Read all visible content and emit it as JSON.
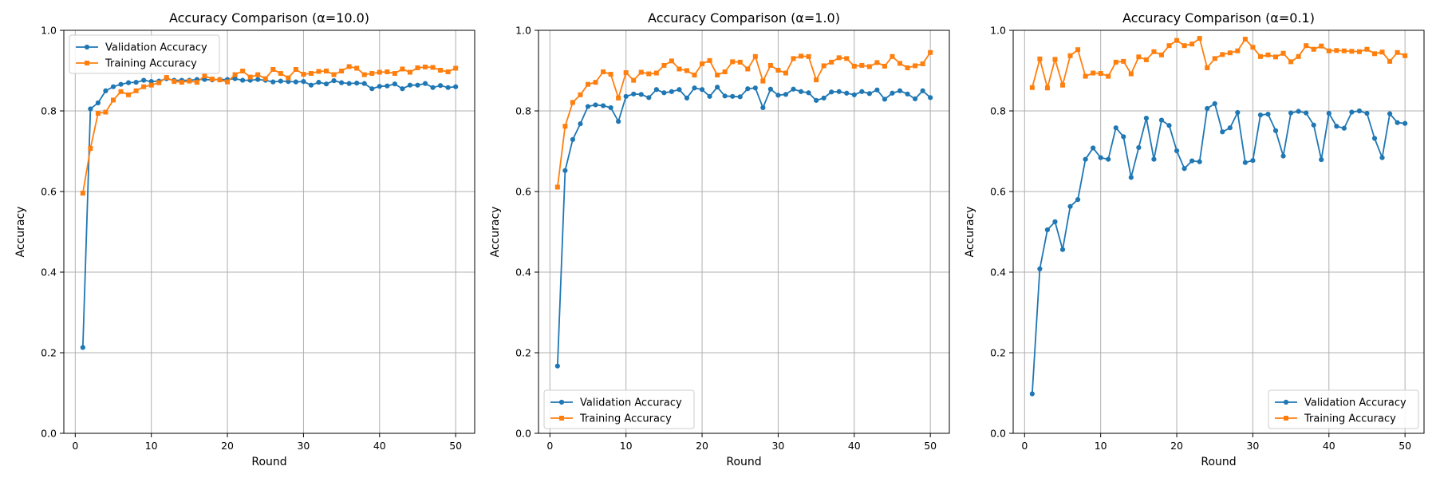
{
  "chart_data": [
    {
      "type": "line",
      "title": "Accuracy Comparison (α=10.0)",
      "xlabel": "Round",
      "ylabel": "Accuracy",
      "xlim": [
        -1.5,
        52.5
      ],
      "ylim": [
        0.0,
        1.0
      ],
      "xticks": [
        0,
        10,
        20,
        30,
        40,
        50
      ],
      "yticks": [
        0.0,
        0.2,
        0.4,
        0.6,
        0.8,
        1.0
      ],
      "grid": true,
      "legend_position": "top-left",
      "x": [
        1,
        2,
        3,
        4,
        5,
        6,
        7,
        8,
        9,
        10,
        11,
        12,
        13,
        14,
        15,
        16,
        17,
        18,
        19,
        20,
        21,
        22,
        23,
        24,
        25,
        26,
        27,
        28,
        29,
        30,
        31,
        32,
        33,
        34,
        35,
        36,
        37,
        38,
        39,
        40,
        41,
        42,
        43,
        44,
        45,
        46,
        47,
        48,
        49,
        50
      ],
      "series": [
        {
          "name": "Validation Accuracy",
          "color": "#1f77b4",
          "marker": "circle",
          "values": [
            0.213,
            0.805,
            0.82,
            0.85,
            0.86,
            0.866,
            0.87,
            0.871,
            0.876,
            0.873,
            0.874,
            0.88,
            0.876,
            0.876,
            0.876,
            0.878,
            0.878,
            0.877,
            0.878,
            0.878,
            0.88,
            0.876,
            0.876,
            0.878,
            0.876,
            0.872,
            0.874,
            0.873,
            0.872,
            0.873,
            0.864,
            0.871,
            0.867,
            0.875,
            0.87,
            0.868,
            0.869,
            0.868,
            0.855,
            0.861,
            0.862,
            0.867,
            0.855,
            0.864,
            0.864,
            0.868,
            0.858,
            0.863,
            0.858,
            0.86
          ]
        },
        {
          "name": "Training Accuracy",
          "color": "#ff7f0e",
          "marker": "square",
          "values": [
            0.596,
            0.707,
            0.794,
            0.797,
            0.827,
            0.848,
            0.84,
            0.85,
            0.86,
            0.864,
            0.87,
            0.883,
            0.873,
            0.871,
            0.874,
            0.871,
            0.887,
            0.879,
            0.877,
            0.872,
            0.89,
            0.899,
            0.884,
            0.89,
            0.88,
            0.903,
            0.893,
            0.882,
            0.903,
            0.891,
            0.893,
            0.898,
            0.899,
            0.89,
            0.899,
            0.91,
            0.906,
            0.89,
            0.893,
            0.896,
            0.897,
            0.893,
            0.904,
            0.896,
            0.907,
            0.909,
            0.908,
            0.901,
            0.897,
            0.906
          ]
        }
      ]
    },
    {
      "type": "line",
      "title": "Accuracy Comparison (α=1.0)",
      "xlabel": "Round",
      "ylabel": "Accuracy",
      "xlim": [
        -1.5,
        52.5
      ],
      "ylim": [
        0.0,
        1.0
      ],
      "xticks": [
        0,
        10,
        20,
        30,
        40,
        50
      ],
      "yticks": [
        0.0,
        0.2,
        0.4,
        0.6,
        0.8,
        1.0
      ],
      "grid": true,
      "legend_position": "bottom-left",
      "x": [
        1,
        2,
        3,
        4,
        5,
        6,
        7,
        8,
        9,
        10,
        11,
        12,
        13,
        14,
        15,
        16,
        17,
        18,
        19,
        20,
        21,
        22,
        23,
        24,
        25,
        26,
        27,
        28,
        29,
        30,
        31,
        32,
        33,
        34,
        35,
        36,
        37,
        38,
        39,
        40,
        41,
        42,
        43,
        44,
        45,
        46,
        47,
        48,
        49,
        50
      ],
      "series": [
        {
          "name": "Validation Accuracy",
          "color": "#1f77b4",
          "marker": "circle",
          "values": [
            0.167,
            0.652,
            0.729,
            0.768,
            0.811,
            0.815,
            0.813,
            0.808,
            0.774,
            0.836,
            0.842,
            0.841,
            0.833,
            0.853,
            0.845,
            0.848,
            0.853,
            0.832,
            0.857,
            0.853,
            0.836,
            0.859,
            0.837,
            0.836,
            0.835,
            0.855,
            0.857,
            0.808,
            0.854,
            0.839,
            0.841,
            0.854,
            0.848,
            0.845,
            0.826,
            0.832,
            0.847,
            0.848,
            0.844,
            0.84,
            0.848,
            0.843,
            0.852,
            0.829,
            0.844,
            0.85,
            0.842,
            0.83,
            0.85,
            0.833
          ]
        },
        {
          "name": "Training Accuracy",
          "color": "#ff7f0e",
          "marker": "square",
          "values": [
            0.611,
            0.762,
            0.821,
            0.84,
            0.866,
            0.871,
            0.897,
            0.891,
            0.832,
            0.895,
            0.876,
            0.896,
            0.892,
            0.894,
            0.913,
            0.924,
            0.904,
            0.9,
            0.889,
            0.917,
            0.925,
            0.889,
            0.897,
            0.922,
            0.921,
            0.904,
            0.935,
            0.874,
            0.913,
            0.901,
            0.894,
            0.93,
            0.936,
            0.935,
            0.877,
            0.912,
            0.921,
            0.932,
            0.93,
            0.911,
            0.913,
            0.91,
            0.92,
            0.911,
            0.935,
            0.918,
            0.907,
            0.912,
            0.917,
            0.945
          ]
        }
      ]
    },
    {
      "type": "line",
      "title": "Accuracy Comparison (α=0.1)",
      "xlabel": "Round",
      "ylabel": "Accuracy",
      "xlim": [
        -1.5,
        52.5
      ],
      "ylim": [
        0.0,
        1.0
      ],
      "xticks": [
        0,
        10,
        20,
        30,
        40,
        50
      ],
      "yticks": [
        0.0,
        0.2,
        0.4,
        0.6,
        0.8,
        1.0
      ],
      "grid": true,
      "legend_position": "bottom-right",
      "x": [
        1,
        2,
        3,
        4,
        5,
        6,
        7,
        8,
        9,
        10,
        11,
        12,
        13,
        14,
        15,
        16,
        17,
        18,
        19,
        20,
        21,
        22,
        23,
        24,
        25,
        26,
        27,
        28,
        29,
        30,
        31,
        32,
        33,
        34,
        35,
        36,
        37,
        38,
        39,
        40,
        41,
        42,
        43,
        44,
        45,
        46,
        47,
        48,
        49,
        50
      ],
      "series": [
        {
          "name": "Validation Accuracy",
          "color": "#1f77b4",
          "marker": "circle",
          "values": [
            0.098,
            0.408,
            0.505,
            0.525,
            0.456,
            0.563,
            0.58,
            0.68,
            0.708,
            0.684,
            0.68,
            0.758,
            0.736,
            0.635,
            0.709,
            0.782,
            0.68,
            0.777,
            0.764,
            0.701,
            0.657,
            0.676,
            0.674,
            0.806,
            0.818,
            0.748,
            0.758,
            0.796,
            0.672,
            0.677,
            0.79,
            0.792,
            0.751,
            0.688,
            0.795,
            0.799,
            0.795,
            0.765,
            0.679,
            0.794,
            0.762,
            0.757,
            0.797,
            0.8,
            0.794,
            0.732,
            0.684,
            0.793,
            0.771,
            0.769
          ]
        },
        {
          "name": "Training Accuracy",
          "color": "#ff7f0e",
          "marker": "square",
          "values": [
            0.858,
            0.929,
            0.857,
            0.928,
            0.864,
            0.937,
            0.952,
            0.886,
            0.894,
            0.893,
            0.886,
            0.921,
            0.923,
            0.892,
            0.934,
            0.927,
            0.947,
            0.939,
            0.962,
            0.975,
            0.962,
            0.966,
            0.98,
            0.907,
            0.93,
            0.94,
            0.944,
            0.949,
            0.978,
            0.958,
            0.935,
            0.939,
            0.934,
            0.943,
            0.922,
            0.935,
            0.962,
            0.953,
            0.961,
            0.949,
            0.95,
            0.949,
            0.948,
            0.947,
            0.953,
            0.942,
            0.946,
            0.923,
            0.945,
            0.937
          ]
        }
      ]
    }
  ]
}
